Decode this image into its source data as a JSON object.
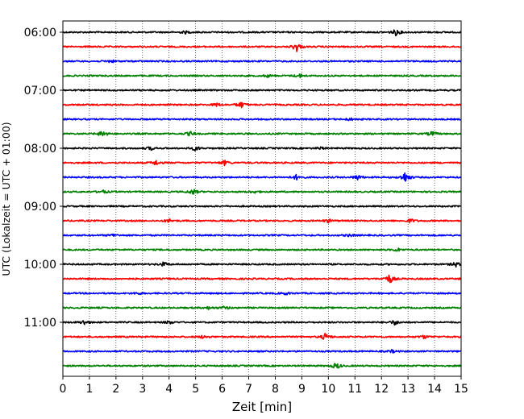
{
  "chart_data": {
    "type": "line",
    "title": "",
    "xlabel": "Zeit  [min]",
    "ylabel": "UTC (Lokalzeit = UTC + 01:00)",
    "xlim": [
      0,
      15
    ],
    "x_ticks": [
      "0",
      "1",
      "2",
      "3",
      "4",
      "5",
      "6",
      "7",
      "8",
      "9",
      "10",
      "11",
      "12",
      "13",
      "14",
      "15"
    ],
    "y_hour_labels": [
      "06:00",
      "07:00",
      "08:00",
      "09:00",
      "10:00",
      "11:00"
    ],
    "grid": "vertical-dotted",
    "trace_colors": [
      "#000000",
      "#ff0000",
      "#0000ff",
      "#008000"
    ],
    "series": [
      {
        "start": "06:00",
        "color": "#000000",
        "events": [
          [
            4.6,
            1.5
          ],
          [
            12.55,
            4
          ]
        ]
      },
      {
        "start": "06:15",
        "color": "#ff0000",
        "events": [
          [
            8.8,
            6
          ]
        ]
      },
      {
        "start": "06:30",
        "color": "#0000ff",
        "events": [
          [
            1.8,
            1.8
          ]
        ]
      },
      {
        "start": "06:45",
        "color": "#008000",
        "events": [
          [
            7.7,
            1.5
          ],
          [
            8.9,
            2.5
          ]
        ]
      },
      {
        "start": "07:00",
        "color": "#000000",
        "events": []
      },
      {
        "start": "07:15",
        "color": "#ff0000",
        "events": [
          [
            5.8,
            2
          ],
          [
            6.7,
            4
          ]
        ]
      },
      {
        "start": "07:30",
        "color": "#0000ff",
        "events": [
          [
            10.8,
            1.5
          ]
        ]
      },
      {
        "start": "07:45",
        "color": "#008000",
        "events": [
          [
            1.5,
            4.5
          ],
          [
            4.8,
            2.5
          ],
          [
            13.9,
            3
          ]
        ]
      },
      {
        "start": "08:00",
        "color": "#000000",
        "events": [
          [
            3.3,
            2
          ],
          [
            5.0,
            3
          ],
          [
            9.7,
            1.5
          ]
        ]
      },
      {
        "start": "08:15",
        "color": "#ff0000",
        "events": [
          [
            3.5,
            3
          ],
          [
            6.1,
            3
          ]
        ]
      },
      {
        "start": "08:30",
        "color": "#0000ff",
        "events": [
          [
            8.8,
            3
          ],
          [
            11.1,
            3
          ],
          [
            12.9,
            7
          ]
        ]
      },
      {
        "start": "08:45",
        "color": "#008000",
        "events": [
          [
            1.5,
            2
          ],
          [
            4.9,
            3.5
          ],
          [
            7.2,
            1.5
          ]
        ]
      },
      {
        "start": "09:00",
        "color": "#000000",
        "events": []
      },
      {
        "start": "09:15",
        "color": "#ff0000",
        "events": [
          [
            4.0,
            2
          ],
          [
            10.0,
            2
          ],
          [
            13.1,
            2.5
          ]
        ]
      },
      {
        "start": "09:30",
        "color": "#0000ff",
        "events": [
          [
            1.9,
            1.5
          ],
          [
            10.8,
            1.5
          ]
        ]
      },
      {
        "start": "09:45",
        "color": "#008000",
        "events": [
          [
            12.6,
            2
          ]
        ]
      },
      {
        "start": "10:00",
        "color": "#000000",
        "events": [
          [
            3.8,
            2.5
          ],
          [
            14.8,
            3
          ]
        ]
      },
      {
        "start": "10:15",
        "color": "#ff0000",
        "events": [
          [
            12.3,
            6
          ]
        ]
      },
      {
        "start": "10:30",
        "color": "#0000ff",
        "events": [
          [
            2.8,
            1.5
          ],
          [
            8.4,
            1.5
          ]
        ]
      },
      {
        "start": "10:45",
        "color": "#008000",
        "events": [
          [
            5.5,
            1.5
          ],
          [
            6.1,
            2
          ]
        ]
      },
      {
        "start": "11:00",
        "color": "#000000",
        "events": [
          [
            0.8,
            3
          ],
          [
            4.0,
            2
          ],
          [
            12.5,
            3
          ]
        ]
      },
      {
        "start": "11:15",
        "color": "#ff0000",
        "events": [
          [
            5.3,
            2
          ],
          [
            9.9,
            4.5
          ],
          [
            13.6,
            2
          ]
        ]
      },
      {
        "start": "11:30",
        "color": "#0000ff",
        "events": [
          [
            12.4,
            1.5
          ]
        ]
      },
      {
        "start": "11:45",
        "color": "#008000",
        "events": [
          [
            10.3,
            4
          ]
        ]
      }
    ]
  }
}
